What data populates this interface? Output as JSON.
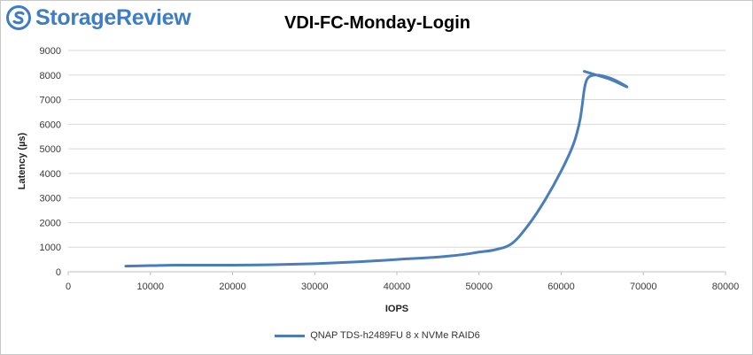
{
  "logo": {
    "text": "StorageReview"
  },
  "colors": {
    "series": "#4a7ebb",
    "grid": "#d9d9d9",
    "logo_blue": "#3e7cc4"
  },
  "chart_data": {
    "type": "line",
    "title": "VDI-FC-Monday-Login",
    "xlabel": "IOPS",
    "ylabel": "Latency (µs)",
    "xlim": [
      0,
      80000
    ],
    "ylim": [
      0,
      9000
    ],
    "xticks": [
      0,
      10000,
      20000,
      30000,
      40000,
      50000,
      60000,
      70000,
      80000
    ],
    "yticks": [
      0,
      1000,
      2000,
      3000,
      4000,
      5000,
      6000,
      7000,
      8000,
      9000
    ],
    "grid": "horizontal",
    "legend_position": "bottom",
    "series": [
      {
        "name": "QNAP TDS-h2489FU 8 x NVMe RAID6",
        "x": [
          7000,
          10000,
          13000,
          17000,
          20000,
          25000,
          30000,
          35000,
          40000,
          45000,
          48000,
          50000,
          52000,
          54000,
          56000,
          58000,
          60000,
          61500,
          62300,
          62800,
          63100,
          63500,
          64200,
          65000,
          66500,
          68000,
          66000,
          64500,
          62800
        ],
        "y": [
          230,
          250,
          270,
          270,
          270,
          290,
          330,
          400,
          500,
          600,
          700,
          800,
          900,
          1150,
          1900,
          2900,
          4100,
          5200,
          6200,
          7400,
          7800,
          7950,
          8000,
          7970,
          7800,
          7520,
          7820,
          7980,
          8150
        ]
      }
    ]
  }
}
